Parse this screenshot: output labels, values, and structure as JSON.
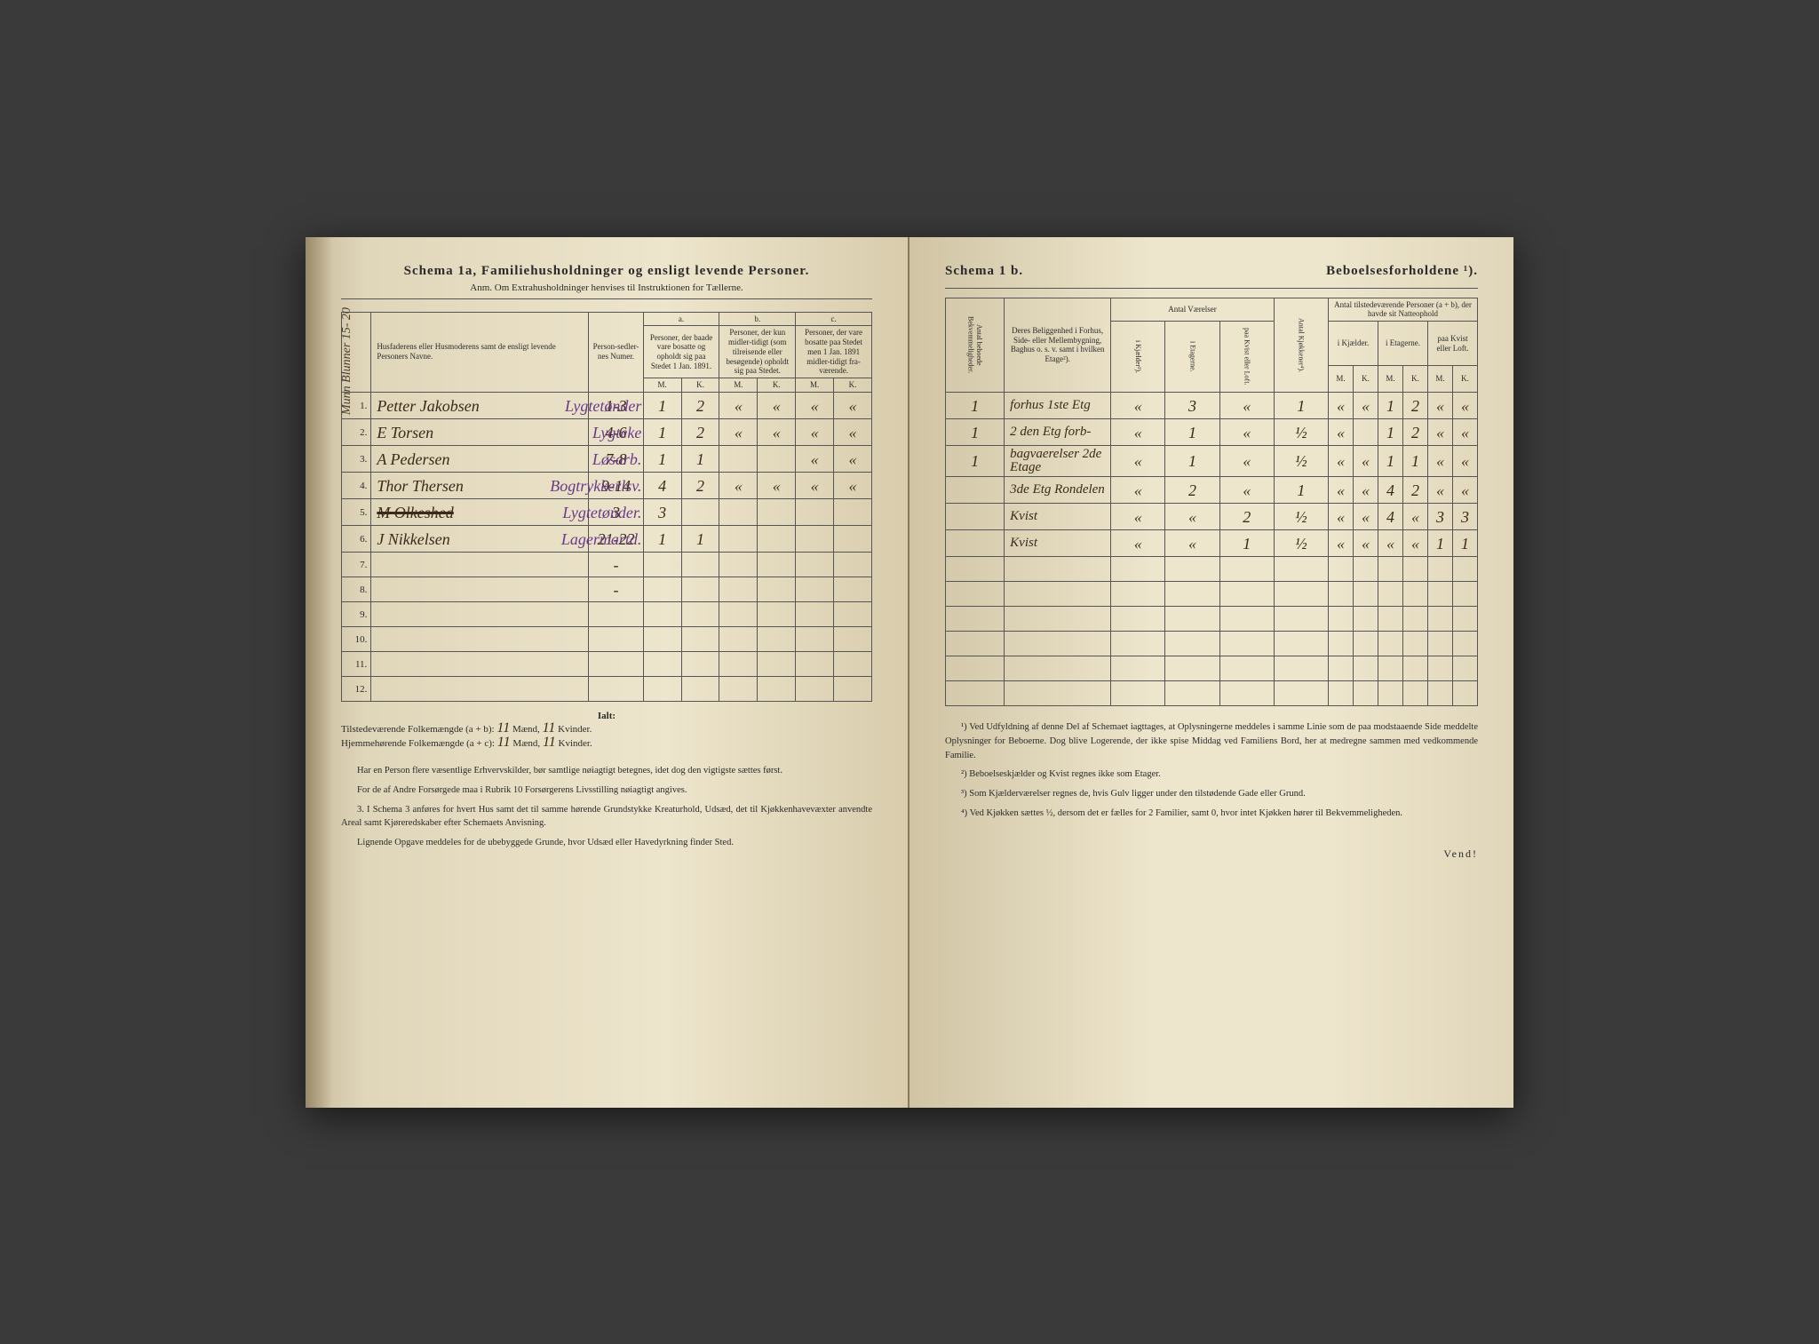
{
  "left": {
    "title": "Schema 1a,  Familiehusholdninger og ensligt levende Personer.",
    "subtitle": "Anm. Om Extrahusholdninger henvises til Instruktionen for Tællerne.",
    "margin_note": "Munn Blunner 15- 20",
    "headers": {
      "name": "Husfaderens eller Husmoderens samt de ensligt levende Personers Navne.",
      "psn": "Person-sedler-nes Numer.",
      "group_a": "a.",
      "group_a_text": "Personer, der baade vare bosatte og opholdt sig paa Stedet 1 Jan. 1891.",
      "group_b": "b.",
      "group_b_text": "Personer, der kun midler-tidigt (som tilreisende eller besøgende) opholdt sig paa Stedet.",
      "group_c": "c.",
      "group_c_text": "Personer, der vare bosatte paa Stedet men 1 Jan. 1891 midler-tidigt fra-værende.",
      "m": "M.",
      "k": "K."
    },
    "rows": [
      {
        "n": "1.",
        "name": "Petter Jakobsen",
        "psn": "1-3",
        "am": "1",
        "ak": "2",
        "bm": "«",
        "bk": "«",
        "cm": "«",
        "ck": "«",
        "note": "Lygtetønder"
      },
      {
        "n": "2.",
        "name": "E Torsen",
        "psn": "4-6",
        "am": "1",
        "ak": "2",
        "bm": "«",
        "bk": "«",
        "cm": "«",
        "ck": "«",
        "note": "Lygteke"
      },
      {
        "n": "3.",
        "name": "A Pedersen",
        "psn": "7-8",
        "am": "1",
        "ak": "1",
        "bm": "",
        "bk": "",
        "cm": "«",
        "ck": "«",
        "note": "Løsarb."
      },
      {
        "n": "4.",
        "name": "Thor Thersen",
        "psn": "9-14",
        "am": "4",
        "ak": "2",
        "bm": "«",
        "bk": "«",
        "cm": "«",
        "ck": "«",
        "note": "Bogtrykkerlsv."
      },
      {
        "n": "5.",
        "name": "M Olkeshed",
        "psn": "3",
        "am": "3",
        "ak": "",
        "bm": "",
        "bk": "",
        "cm": "",
        "ck": "",
        "note": "Lygtetønder.",
        "struck": true
      },
      {
        "n": "6.",
        "name": "J Nikkelsen",
        "psn": "21-22",
        "am": "1",
        "ak": "1",
        "bm": "",
        "bk": "",
        "cm": "",
        "ck": "",
        "note": "Lagermartd."
      },
      {
        "n": "7.",
        "name": "",
        "psn": "-",
        "am": "",
        "ak": "",
        "bm": "",
        "bk": "",
        "cm": "",
        "ck": "",
        "note": ""
      },
      {
        "n": "8.",
        "name": "",
        "psn": "-",
        "am": "",
        "ak": "",
        "bm": "",
        "bk": "",
        "cm": "",
        "ck": "",
        "note": ""
      },
      {
        "n": "9.",
        "name": "",
        "psn": "",
        "am": "",
        "ak": "",
        "bm": "",
        "bk": "",
        "cm": "",
        "ck": "",
        "note": ""
      },
      {
        "n": "10.",
        "name": "",
        "psn": "",
        "am": "",
        "ak": "",
        "bm": "",
        "bk": "",
        "cm": "",
        "ck": "",
        "note": ""
      },
      {
        "n": "11.",
        "name": "",
        "psn": "",
        "am": "",
        "ak": "",
        "bm": "",
        "bk": "",
        "cm": "",
        "ck": "",
        "note": ""
      },
      {
        "n": "12.",
        "name": "",
        "psn": "",
        "am": "",
        "ak": "",
        "bm": "",
        "bk": "",
        "cm": "",
        "ck": "",
        "note": ""
      }
    ],
    "totals": {
      "ialt": "Ialt:",
      "line1_label": "Tilstedeværende Folkemængde (a + b):",
      "line1_m": "11",
      "line1_mlabel": "Mænd,",
      "line1_k": "11",
      "line1_klabel": "Kvinder.",
      "line2_label": "Hjemmehørende Folkemængde (a + c):",
      "line2_m": "11",
      "line2_k": "11"
    },
    "footer": [
      "Har en Person flere væsentlige Erhvervskilder, bør samtlige nøiagtigt betegnes, idet dog den vigtigste sættes først.",
      "For de af Andre Forsørgede maa i Rubrik 10 Forsørgerens Livsstilling nøiagtigt angives.",
      "3. I Schema 3 anføres for hvert Hus samt det til samme hørende Grundstykke Kreaturhold, Udsæd, det til Kjøkkenhavevæxter anvendte Areal samt Kjøreredskaber efter Schemaets Anvisning.",
      "Lignende Opgave meddeles for de ubebyggede Grunde, hvor Udsæd eller Havedyrkning finder Sted."
    ]
  },
  "right": {
    "title_a": "Schema 1 b.",
    "title_b": "Beboelsesforholdene ¹).",
    "headers": {
      "antbek": "Antal beboede Bekvemmeligheder.",
      "belig": "Deres Beliggenhed i Forhus, Side- eller Mellembygning, Baghus o. s. v. samt i hvilken Etage²).",
      "vaer": "Antal Værelser",
      "kjael": "i Kjælder³).",
      "etag": "i Etagerne.",
      "kvist": "paa Kvist eller Loft.",
      "kjok": "Antal Kjøkkener⁴).",
      "tilst": "Antal tilstedeværende Personer (a + b), der havde sit Natteophold",
      "tk": "i Kjælder.",
      "te": "i Etagerne.",
      "tkv": "paa Kvist eller Loft.",
      "m": "M.",
      "k": "K."
    },
    "rows": [
      {
        "bek": "1",
        "belig": "forhus 1ste Etg",
        "kj": "«",
        "et": "3",
        "kv": "«",
        "kk": "1",
        "tkm": "«",
        "tkk": "«",
        "tem": "1",
        "tek": "2",
        "tkvm": "«",
        "tkvk": "«"
      },
      {
        "bek": "1",
        "belig": "2 den Etg forb-",
        "kj": "«",
        "et": "1",
        "kv": "«",
        "kk": "½",
        "tkm": "«",
        "tkk": "",
        "tem": "1",
        "tek": "2",
        "tkvm": "«",
        "tkvk": "«"
      },
      {
        "bek": "1",
        "belig": "bagvaerelser 2de Etage",
        "kj": "«",
        "et": "1",
        "kv": "«",
        "kk": "½",
        "tkm": "«",
        "tkk": "«",
        "tem": "1",
        "tek": "1",
        "tkvm": "«",
        "tkvk": "«"
      },
      {
        "bek": "",
        "belig": "3de Etg Rondelen",
        "kj": "«",
        "et": "2",
        "kv": "«",
        "kk": "1",
        "tkm": "«",
        "tkk": "«",
        "tem": "4",
        "tek": "2",
        "tkvm": "«",
        "tkvk": "«"
      },
      {
        "bek": "",
        "belig": "Kvist",
        "kj": "«",
        "et": "«",
        "kv": "2",
        "kk": "½",
        "tkm": "«",
        "tkk": "«",
        "tem": "4",
        "tek": "«",
        "tkvm": "3",
        "tkvk": "3"
      },
      {
        "bek": "",
        "belig": "Kvist",
        "kj": "«",
        "et": "«",
        "kv": "1",
        "kk": "½",
        "tkm": "«",
        "tkk": "«",
        "tem": "«",
        "tek": "«",
        "tkvm": "1",
        "tkvk": "1"
      },
      {
        "bek": "",
        "belig": "",
        "kj": "",
        "et": "",
        "kv": "",
        "kk": "",
        "tkm": "",
        "tkk": "",
        "tem": "",
        "tek": "",
        "tkvm": "",
        "tkvk": ""
      },
      {
        "bek": "",
        "belig": "",
        "kj": "",
        "et": "",
        "kv": "",
        "kk": "",
        "tkm": "",
        "tkk": "",
        "tem": "",
        "tek": "",
        "tkvm": "",
        "tkvk": ""
      },
      {
        "bek": "",
        "belig": "",
        "kj": "",
        "et": "",
        "kv": "",
        "kk": "",
        "tkm": "",
        "tkk": "",
        "tem": "",
        "tek": "",
        "tkvm": "",
        "tkvk": ""
      },
      {
        "bek": "",
        "belig": "",
        "kj": "",
        "et": "",
        "kv": "",
        "kk": "",
        "tkm": "",
        "tkk": "",
        "tem": "",
        "tek": "",
        "tkvm": "",
        "tkvk": ""
      },
      {
        "bek": "",
        "belig": "",
        "kj": "",
        "et": "",
        "kv": "",
        "kk": "",
        "tkm": "",
        "tkk": "",
        "tem": "",
        "tek": "",
        "tkvm": "",
        "tkvk": ""
      },
      {
        "bek": "",
        "belig": "",
        "kj": "",
        "et": "",
        "kv": "",
        "kk": "",
        "tkm": "",
        "tkk": "",
        "tem": "",
        "tek": "",
        "tkvm": "",
        "tkvk": ""
      }
    ],
    "footer": [
      "¹) Ved Udfyldning af denne Del af Schemaet iagttages, at Oplysningerne meddeles i samme Linie som de paa modstaaende Side meddelte Oplysninger for Beboerne. Dog blive Logerende, der ikke spise Middag ved Familiens Bord, her at medregne sammen med vedkommende Familie.",
      "²) Beboelseskjælder og Kvist regnes ikke som Etager.",
      "³) Som Kjælderværelser regnes de, hvis Gulv ligger under den tilstødende Gade eller Grund.",
      "⁴) Ved Kjøkken sættes ½, dersom det er fælles for 2 Familier, samt 0, hvor intet Kjøkken hører til Bekvemmeligheden."
    ],
    "vend": "Vend!"
  }
}
